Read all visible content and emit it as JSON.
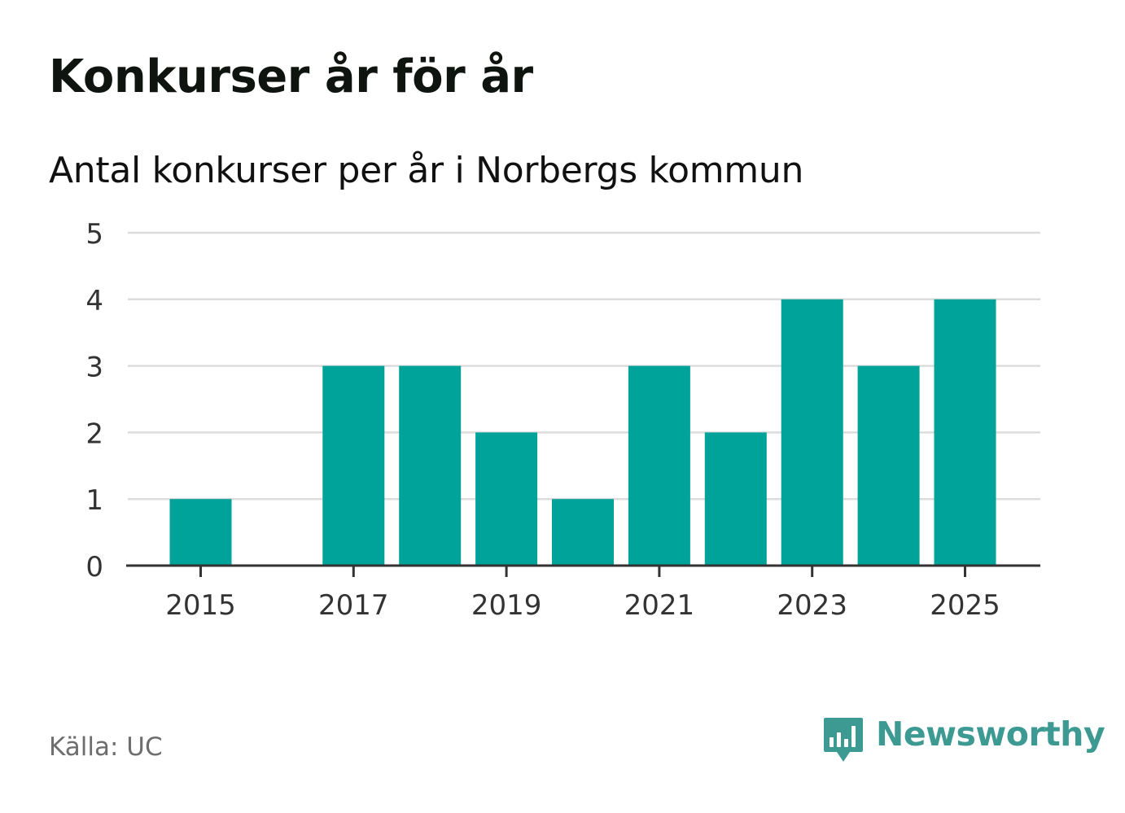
{
  "title": "Konkurser år för år",
  "subtitle": "Antal konkurser per år i Norbergs kommun",
  "source": "Källa: UC",
  "brand": {
    "name": "Newsworthy",
    "logo_icon": "newsworthy-bar-chart-speech-bubble-icon",
    "color": "#3d9a92"
  },
  "colors": {
    "bar": "#00a39a",
    "grid": "#dcdcdc",
    "axis": "#333333",
    "tick_label": "#333333"
  },
  "chart_data": {
    "type": "bar",
    "x": [
      2015,
      2016,
      2017,
      2018,
      2019,
      2020,
      2021,
      2022,
      2023,
      2024,
      2025
    ],
    "values": [
      1,
      0,
      3,
      3,
      2,
      1,
      3,
      2,
      4,
      3,
      4
    ],
    "x_tick_labels": [
      "2015",
      "2017",
      "2019",
      "2021",
      "2023",
      "2025"
    ],
    "y_tick_labels": [
      "0",
      "1",
      "2",
      "3",
      "4",
      "5"
    ],
    "ylim": [
      0,
      5
    ],
    "xlabel": "",
    "ylabel": "",
    "grid": true,
    "legend": "none"
  }
}
